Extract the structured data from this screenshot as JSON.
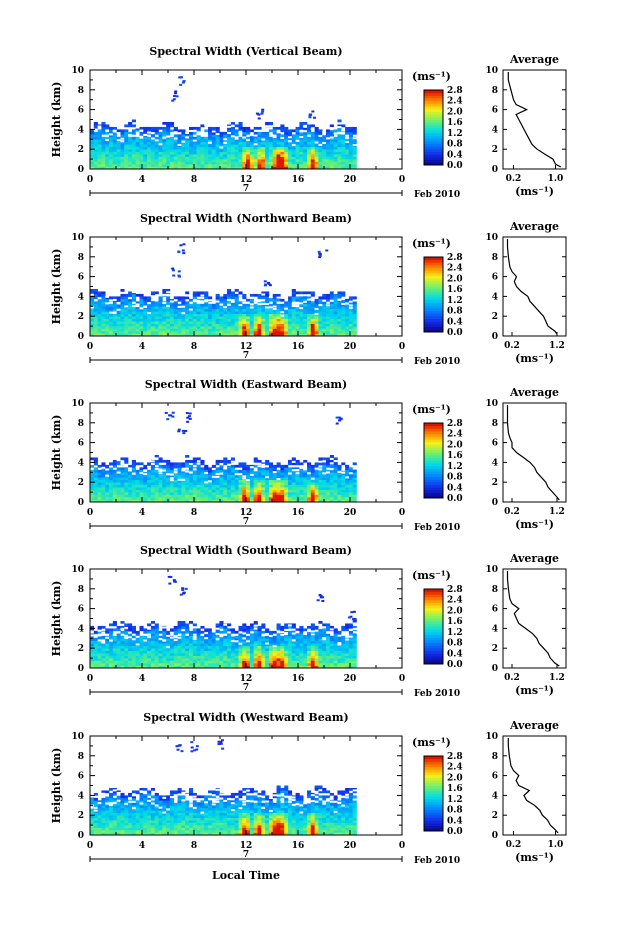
{
  "figure": {
    "xlabel": "Local Time",
    "date_label": "Feb 2010",
    "day_marker": "7",
    "units_label": "(ms⁻¹)",
    "avg_title": "Average",
    "ylabel": "Height (km)"
  },
  "chart_data": [
    {
      "type": "heatmap",
      "title": "Spectral Width (Vertical Beam)",
      "xlabel": "Local Time",
      "ylabel": "Height (km)",
      "x_ticks": [
        "0",
        "4",
        "8",
        "12",
        "16",
        "20",
        "0"
      ],
      "xlim": [
        0,
        24
      ],
      "y_ticks": [
        "0",
        "2",
        "4",
        "6",
        "8",
        "10"
      ],
      "ylim": [
        0,
        10
      ],
      "colorbar": {
        "label": "(ms⁻¹)",
        "ticks": [
          "0.0",
          "0.4",
          "0.8",
          "1.2",
          "1.6",
          "2.0",
          "2.4",
          "2.8"
        ],
        "range": [
          0.0,
          2.8
        ]
      },
      "top": 4.4,
      "sparse": [
        [
          6.5,
          8.0
        ],
        [
          7.0,
          9.4
        ],
        [
          13.0,
          6.2
        ],
        [
          17.0,
          6.2
        ]
      ],
      "hotspots": [
        12.0,
        13.0,
        14.2,
        14.7,
        17.0
      ],
      "avg_profile": {
        "xlabel": "(ms⁻¹)",
        "x_ticks": [
          "0.2",
          "1.0"
        ],
        "xlim": [
          0.0,
          1.2
        ],
        "heights": [
          0.2,
          0.5,
          1.0,
          1.5,
          2.0,
          2.5,
          3.0,
          3.5,
          4.0,
          4.5,
          5.0,
          5.5,
          6.0,
          6.5,
          7.0,
          8.0,
          9.0,
          9.8
        ],
        "values": [
          1.1,
          1.0,
          0.95,
          0.8,
          0.65,
          0.55,
          0.5,
          0.45,
          0.4,
          0.35,
          0.3,
          0.25,
          0.45,
          0.25,
          0.2,
          0.15,
          0.1,
          0.1
        ]
      }
    },
    {
      "type": "heatmap",
      "title": "Spectral Width (Northward Beam)",
      "xlabel": "Local Time",
      "ylabel": "Height (km)",
      "x_ticks": [
        "0",
        "4",
        "8",
        "12",
        "16",
        "20",
        "0"
      ],
      "xlim": [
        0,
        24
      ],
      "y_ticks": [
        "0",
        "2",
        "4",
        "6",
        "8",
        "10"
      ],
      "ylim": [
        0,
        10
      ],
      "colorbar": {
        "label": "(ms⁻¹)",
        "ticks": [
          "0.0",
          "0.4",
          "0.8",
          "1.2",
          "1.6",
          "2.0",
          "2.4",
          "2.8"
        ],
        "range": [
          0.0,
          2.8
        ]
      },
      "top": 4.4,
      "sparse": [
        [
          6.5,
          7.0
        ],
        [
          7.0,
          9.4
        ],
        [
          17.8,
          9.0
        ],
        [
          13.5,
          6.2
        ]
      ],
      "hotspots": [
        11.8,
        12.8,
        14.0,
        14.6,
        17.0
      ],
      "avg_profile": {
        "xlabel": "(ms⁻¹)",
        "x_ticks": [
          "0.2",
          "1.2"
        ],
        "xlim": [
          0.0,
          1.4
        ],
        "heights": [
          0.2,
          0.5,
          1.0,
          1.5,
          2.0,
          2.5,
          3.0,
          3.5,
          4.0,
          4.5,
          5.0,
          5.5,
          6.0,
          6.5,
          7.0,
          8.0,
          9.0,
          9.8
        ],
        "values": [
          1.2,
          1.15,
          1.0,
          0.95,
          0.9,
          0.8,
          0.7,
          0.6,
          0.55,
          0.4,
          0.3,
          0.25,
          0.3,
          0.2,
          0.15,
          0.12,
          0.1,
          0.1
        ]
      }
    },
    {
      "type": "heatmap",
      "title": "Spectral Width (Eastward Beam)",
      "xlabel": "Local Time",
      "ylabel": "Height (km)",
      "x_ticks": [
        "0",
        "4",
        "8",
        "12",
        "16",
        "20",
        "0"
      ],
      "xlim": [
        0,
        24
      ],
      "y_ticks": [
        "0",
        "2",
        "4",
        "6",
        "8",
        "10"
      ],
      "ylim": [
        0,
        10
      ],
      "colorbar": {
        "label": "(ms⁻¹)",
        "ticks": [
          "0.0",
          "0.4",
          "0.8",
          "1.2",
          "1.6",
          "2.0",
          "2.4",
          "2.8"
        ],
        "range": [
          0.0,
          2.8
        ]
      },
      "top": 4.2,
      "sparse": [
        [
          6.0,
          9.2
        ],
        [
          7.3,
          9.2
        ],
        [
          7.0,
          7.6
        ],
        [
          19.0,
          8.7
        ]
      ],
      "hotspots": [
        11.8,
        12.8,
        14.0,
        14.6,
        17.0
      ],
      "avg_profile": {
        "xlabel": "(ms⁻¹)",
        "x_ticks": [
          "0.2",
          "1.2"
        ],
        "xlim": [
          0.0,
          1.4
        ],
        "heights": [
          0.2,
          0.5,
          1.0,
          1.5,
          2.0,
          2.5,
          3.0,
          3.5,
          4.0,
          4.5,
          5.0,
          5.5,
          6.0,
          6.5,
          7.0,
          8.0,
          9.0,
          9.8
        ],
        "values": [
          1.25,
          1.2,
          1.1,
          1.0,
          0.95,
          0.85,
          0.75,
          0.7,
          0.6,
          0.45,
          0.3,
          0.2,
          0.2,
          0.15,
          0.12,
          0.1,
          0.1,
          0.1
        ]
      }
    },
    {
      "type": "heatmap",
      "title": "Spectral Width (Southward Beam)",
      "xlabel": "Local Time",
      "ylabel": "Height (km)",
      "x_ticks": [
        "0",
        "4",
        "8",
        "12",
        "16",
        "20",
        "0"
      ],
      "xlim": [
        0,
        24
      ],
      "y_ticks": [
        "0",
        "2",
        "4",
        "6",
        "8",
        "10"
      ],
      "ylim": [
        0,
        10
      ],
      "colorbar": {
        "label": "(ms⁻¹)",
        "ticks": [
          "0.0",
          "0.4",
          "0.8",
          "1.2",
          "1.6",
          "2.0",
          "2.4",
          "2.8"
        ],
        "range": [
          0.0,
          2.8
        ]
      },
      "top": 4.4,
      "sparse": [
        [
          6.2,
          9.5
        ],
        [
          7.2,
          8.2
        ],
        [
          17.5,
          7.8
        ],
        [
          20.0,
          6.0
        ]
      ],
      "hotspots": [
        11.8,
        12.8,
        14.0,
        14.6,
        17.0
      ],
      "avg_profile": {
        "xlabel": "(ms⁻¹)",
        "x_ticks": [
          "0.2",
          "1.2"
        ],
        "xlim": [
          0.0,
          1.4
        ],
        "heights": [
          0.2,
          0.5,
          1.0,
          1.5,
          2.0,
          2.5,
          3.0,
          3.5,
          4.0,
          4.5,
          5.0,
          5.5,
          6.0,
          6.5,
          7.0,
          8.0,
          9.0,
          9.8
        ],
        "values": [
          1.25,
          1.15,
          1.05,
          1.0,
          0.9,
          0.8,
          0.75,
          0.65,
          0.5,
          0.35,
          0.3,
          0.25,
          0.35,
          0.2,
          0.15,
          0.12,
          0.1,
          0.1
        ]
      }
    },
    {
      "type": "heatmap",
      "title": "Spectral Width (Westward Beam)",
      "xlabel": "Local Time",
      "ylabel": "Height (km)",
      "x_ticks": [
        "0",
        "4",
        "8",
        "12",
        "16",
        "20",
        "0"
      ],
      "xlim": [
        0,
        24
      ],
      "y_ticks": [
        "0",
        "2",
        "4",
        "6",
        "8",
        "10"
      ],
      "ylim": [
        0,
        10
      ],
      "colorbar": {
        "label": "(ms⁻¹)",
        "ticks": [
          "0.0",
          "0.4",
          "0.8",
          "1.2",
          "1.6",
          "2.0",
          "2.4",
          "2.8"
        ],
        "range": [
          0.0,
          2.8
        ]
      },
      "top": 4.5,
      "sparse": [
        [
          6.8,
          9.3
        ],
        [
          8.0,
          9.5
        ],
        [
          10.0,
          9.7
        ]
      ],
      "hotspots": [
        11.8,
        12.8,
        14.0,
        14.6,
        17.0
      ],
      "avg_profile": {
        "xlabel": "(ms⁻¹)",
        "x_ticks": [
          "0.2",
          "1.0"
        ],
        "xlim": [
          0.0,
          1.2
        ],
        "heights": [
          0.2,
          0.5,
          1.0,
          1.5,
          2.0,
          2.5,
          3.0,
          3.5,
          4.0,
          4.5,
          5.0,
          5.5,
          6.0,
          6.5,
          7.0,
          8.0,
          9.0,
          9.8
        ],
        "values": [
          1.05,
          1.0,
          0.9,
          0.85,
          0.75,
          0.7,
          0.6,
          0.45,
          0.4,
          0.5,
          0.3,
          0.25,
          0.3,
          0.2,
          0.15,
          0.12,
          0.1,
          0.1
        ]
      }
    }
  ]
}
